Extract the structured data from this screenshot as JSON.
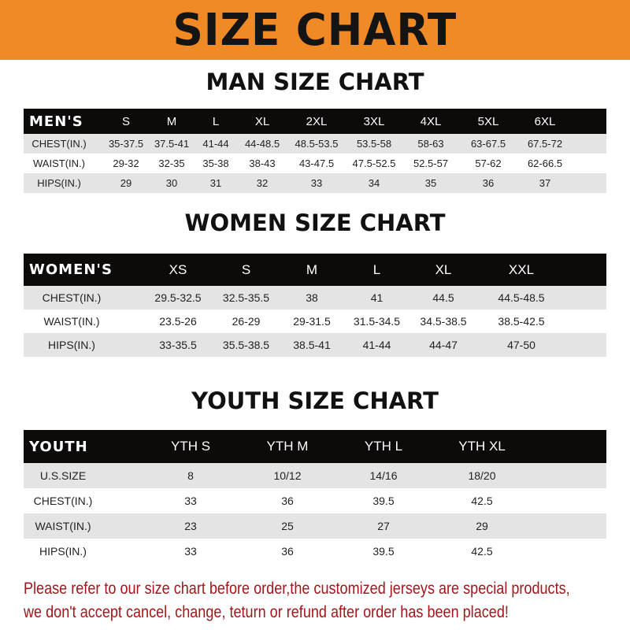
{
  "banner": {
    "title": "SIZE CHART",
    "background": "#ef8a26"
  },
  "men": {
    "title": "MAN SIZE CHART",
    "header": [
      "MEN'S",
      "S",
      "M",
      "L",
      "XL",
      "2XL",
      "3XL",
      "4XL",
      "5XL",
      "6XL"
    ],
    "rows": [
      [
        "CHEST(IN.)",
        "35-37.5",
        "37.5-41",
        "41-44",
        "44-48.5",
        "48.5-53.5",
        "53.5-58",
        "58-63",
        "63-67.5",
        "67.5-72"
      ],
      [
        "WAIST(IN.)",
        "29-32",
        "32-35",
        "35-38",
        "38-43",
        "43-47.5",
        "47.5-52.5",
        "52.5-57",
        "57-62",
        "62-66.5"
      ],
      [
        "HIPS(IN.)",
        "29",
        "30",
        "31",
        "32",
        "33",
        "34",
        "35",
        "36",
        "37"
      ]
    ]
  },
  "women": {
    "title": "WOMEN SIZE CHART",
    "header": [
      "WOMEN'S",
      "XS",
      "S",
      "M",
      "L",
      "XL",
      "XXL"
    ],
    "rows": [
      [
        "CHEST(IN.)",
        "29.5-32.5",
        "32.5-35.5",
        "38",
        "41",
        "44.5",
        "44.5-48.5"
      ],
      [
        "WAIST(IN.)",
        "23.5-26",
        "26-29",
        "29-31.5",
        "31.5-34.5",
        "34.5-38.5",
        "38.5-42.5"
      ],
      [
        "HIPS(IN.)",
        "33-35.5",
        "35.5-38.5",
        "38.5-41",
        "41-44",
        "44-47",
        "47-50"
      ]
    ]
  },
  "youth": {
    "title": "YOUTH SIZE CHART",
    "header": [
      "YOUTH",
      "YTH S",
      "YTH M",
      "YTH L",
      "YTH XL"
    ],
    "rows": [
      [
        "U.S.SIZE",
        "8",
        "10/12",
        "14/16",
        "18/20"
      ],
      [
        "CHEST(IN.)",
        "33",
        "36",
        "39.5",
        "42.5"
      ],
      [
        "WAIST(IN.)",
        "23",
        "25",
        "27",
        "29"
      ],
      [
        "HIPS(IN.)",
        "33",
        "36",
        "39.5",
        "42.5"
      ]
    ]
  },
  "notice": {
    "line1": "Please refer to our size chart before order,the customized jerseys are special products,",
    "line2": "we don't accept cancel, change, teturn or refund after order has been placed!",
    "color": "#a3161b"
  }
}
